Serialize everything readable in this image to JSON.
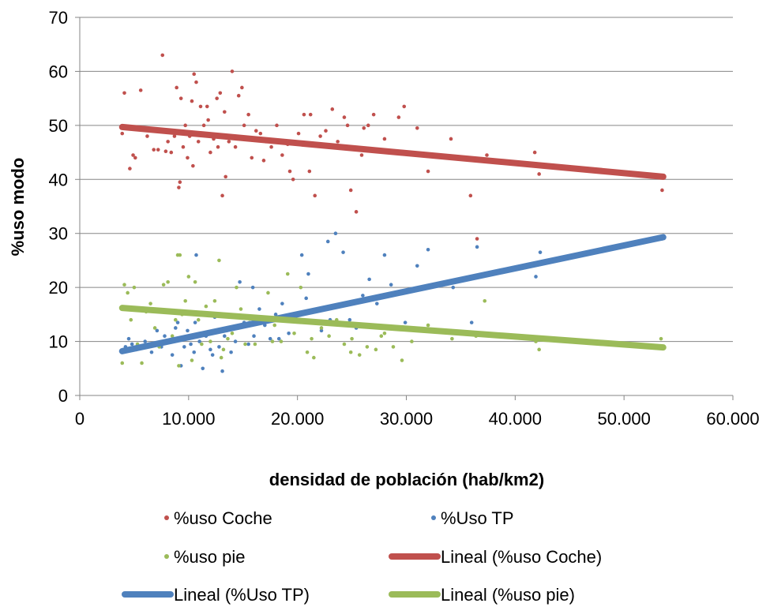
{
  "chart_data": {
    "type": "scatter",
    "xlabel": "densidad de población (hab/km2)",
    "ylabel": "%uso modo",
    "xlim": [
      0,
      60000
    ],
    "ylim": [
      0,
      70
    ],
    "x_ticks": [
      "0",
      "10.000",
      "20.000",
      "30.000",
      "40.000",
      "50.000",
      "60.000"
    ],
    "y_ticks": [
      "0",
      "10",
      "20",
      "30",
      "40",
      "50",
      "60",
      "70"
    ],
    "grid": "horizontal",
    "legend_position": "bottom",
    "series": [
      {
        "name": "%uso Coche",
        "color": "#C0504D",
        "x": [
          3900,
          4100,
          4600,
          4900,
          5100,
          5600,
          6200,
          6800,
          7200,
          7600,
          7900,
          8100,
          8400,
          8700,
          8900,
          9100,
          9300,
          9500,
          9700,
          9900,
          10100,
          10300,
          10500,
          10700,
          10900,
          11100,
          11400,
          11700,
          12000,
          12300,
          12600,
          12900,
          13100,
          13400,
          13700,
          14000,
          14300,
          14600,
          14900,
          15200,
          15500,
          15800,
          16200,
          16600,
          17100,
          17600,
          18100,
          18600,
          19100,
          19600,
          20100,
          20600,
          21100,
          21600,
          22100,
          22600,
          23200,
          23700,
          24300,
          24900,
          25400,
          25900,
          26500,
          27000,
          28000,
          28500,
          29300,
          29800,
          31000,
          32000,
          34100,
          35900,
          36500,
          37400,
          41800,
          42200,
          53400,
          53500,
          9200,
          10400,
          11800,
          12700,
          13300,
          15100,
          16900,
          19300,
          21200,
          24600,
          26100
        ],
        "y": [
          48.5,
          56,
          42,
          44.5,
          44,
          56.5,
          48,
          45.5,
          45.5,
          63,
          45.2,
          47,
          45,
          48,
          57,
          38.5,
          55,
          46,
          50,
          44,
          48,
          54.5,
          59.5,
          58,
          47,
          53.5,
          50,
          53.5,
          45,
          47.5,
          55,
          56,
          37,
          40.5,
          47,
          60,
          46,
          55.5,
          57,
          47.5,
          52,
          44,
          49,
          48.5,
          47,
          46,
          50,
          44.5,
          46.5,
          40,
          48.5,
          52,
          41.5,
          37,
          48,
          49,
          53,
          47,
          51.5,
          38,
          34,
          44.5,
          50,
          52,
          47.5,
          45,
          51.5,
          53.5,
          49.5,
          41.5,
          47.5,
          37,
          29,
          44.5,
          45,
          41,
          40.5,
          38,
          39.5,
          42.5,
          51,
          46,
          52.5,
          50,
          43.5,
          41.5,
          52,
          50,
          49.5
        ]
      },
      {
        "name": "%Uso TP",
        "color": "#4F81BD",
        "x": [
          3900,
          4200,
          4500,
          4800,
          5200,
          5500,
          6000,
          6600,
          7100,
          7500,
          7800,
          8200,
          8500,
          8800,
          9000,
          9300,
          9600,
          9900,
          10200,
          10500,
          10700,
          11000,
          11300,
          11600,
          12000,
          12400,
          12800,
          13100,
          13500,
          13900,
          14300,
          14700,
          15100,
          15500,
          16000,
          16500,
          17000,
          17500,
          18000,
          18600,
          19200,
          19800,
          20400,
          21000,
          21600,
          22200,
          22800,
          23500,
          24200,
          24800,
          25400,
          26000,
          26600,
          27300,
          28000,
          28600,
          29200,
          29900,
          31000,
          32000,
          34300,
          36000,
          36500,
          41900,
          42300,
          53500,
          53600,
          10600,
          12200,
          13300,
          15900,
          18300,
          20800,
          23000
        ],
        "y": [
          8,
          9,
          10.5,
          9.5,
          8.5,
          16,
          10,
          8,
          12,
          9,
          11,
          10,
          7.5,
          12.5,
          13.5,
          5.5,
          9,
          12,
          9.5,
          8,
          26,
          10,
          5,
          11,
          8.5,
          14.5,
          9,
          4.5,
          12,
          8,
          10,
          21,
          13.5,
          9.5,
          11,
          16,
          13,
          10.5,
          15,
          17,
          11.5,
          14.5,
          26,
          22.5,
          15.5,
          12,
          28.5,
          30,
          26.5,
          14,
          12.5,
          18.5,
          21.5,
          17,
          26,
          20.5,
          19,
          13.5,
          24,
          27,
          20,
          13.5,
          27.5,
          22,
          26.5,
          29,
          29.5,
          13.5,
          7.5,
          11,
          20,
          10.5,
          18,
          14
        ]
      },
      {
        "name": "%uso pie",
        "color": "#9BBB59",
        "x": [
          3900,
          4100,
          4400,
          4700,
          5000,
          5300,
          5700,
          6100,
          6500,
          6900,
          7300,
          7700,
          8100,
          8500,
          8800,
          9000,
          9200,
          9400,
          9700,
          10000,
          10300,
          10600,
          10900,
          11200,
          11600,
          12000,
          12400,
          12800,
          13200,
          13600,
          14000,
          14400,
          14800,
          15200,
          15600,
          16100,
          16700,
          17300,
          17900,
          18500,
          19100,
          19700,
          20300,
          20900,
          21500,
          22200,
          22900,
          23600,
          24300,
          25000,
          25700,
          26400,
          27200,
          28000,
          28800,
          29600,
          30500,
          32000,
          34200,
          36400,
          37200,
          41900,
          42200,
          53400,
          53500,
          9100,
          11400,
          13000,
          14600,
          17700,
          21300,
          24900,
          27700
        ],
        "y": [
          6,
          20.5,
          19,
          14,
          20,
          9.5,
          6,
          15.5,
          17,
          12.5,
          9,
          20.5,
          21,
          11,
          14,
          26,
          26,
          15,
          17.5,
          22,
          6.5,
          21,
          14,
          9.5,
          16.5,
          10,
          17.5,
          25,
          8.5,
          10.5,
          11.5,
          20,
          16,
          9.5,
          13.5,
          9.5,
          14,
          19,
          13,
          10,
          22.5,
          11.5,
          20,
          8,
          7,
          12.5,
          11,
          14,
          9.5,
          10.5,
          7.5,
          9,
          8.5,
          11.5,
          9,
          6.5,
          10,
          13,
          10.5,
          11,
          17.5,
          10,
          8.5,
          10.5,
          9,
          5.5,
          11.5,
          7,
          12.5,
          10,
          10.5,
          8,
          11
        ]
      }
    ],
    "trendlines": [
      {
        "name": "Lineal (%uso Coche)",
        "color": "#C0504D",
        "x": [
          3900,
          53600
        ],
        "y": [
          49.7,
          40.5
        ]
      },
      {
        "name": "Lineal (%Uso TP)",
        "color": "#4F81BD",
        "x": [
          3900,
          53600
        ],
        "y": [
          8.2,
          29.3
        ]
      },
      {
        "name": "Lineal (%uso pie)",
        "color": "#9BBB59",
        "x": [
          3900,
          53600
        ],
        "y": [
          16.2,
          8.9
        ]
      }
    ]
  }
}
